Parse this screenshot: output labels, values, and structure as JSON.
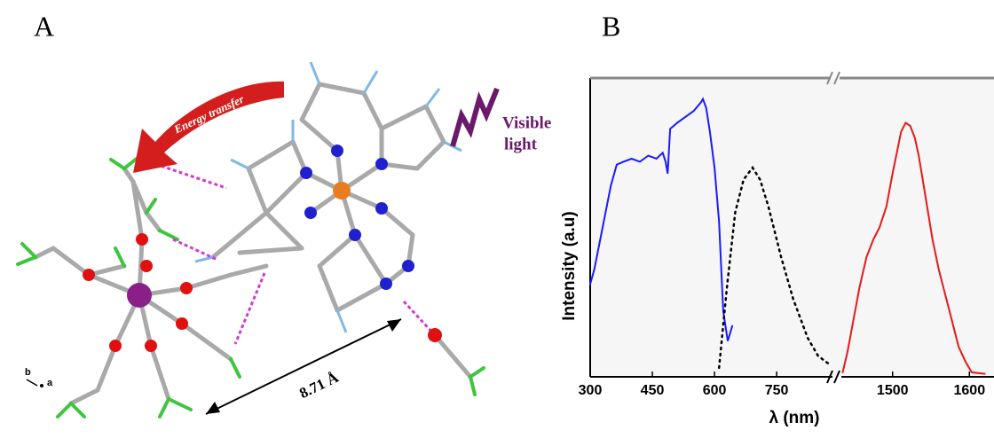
{
  "panel_labels": [
    "A",
    "B"
  ],
  "panel_a": {
    "energy_transfer": "Energy transfer",
    "visible_light": [
      "Visible",
      "light"
    ],
    "distance": "8.71 Å",
    "axes": [
      "b",
      "a"
    ]
  },
  "chart_data": {
    "type": "line",
    "y_label": "Intensity (a.u)",
    "x_label": "λ (nm)",
    "ylim": [
      0,
      1
    ],
    "x_segments": [
      {
        "xlim": [
          300,
          889
        ],
        "xticks": [
          300,
          450,
          600,
          750
        ]
      },
      {
        "xlim": [
          1431,
          1632
        ],
        "xticks": [
          1500,
          1600
        ]
      }
    ],
    "series": [
      {
        "color": "#1a1aff",
        "style": "solid",
        "x": [
          300,
          310,
          330,
          350,
          364,
          380,
          400,
          420,
          440,
          460,
          475,
          482,
          487,
          493,
          510,
          530,
          550,
          568,
          572,
          580,
          589,
          600,
          611,
          621,
          632,
          643
        ],
        "values": [
          0.31,
          0.36,
          0.5,
          0.64,
          0.71,
          0.72,
          0.73,
          0.72,
          0.74,
          0.73,
          0.75,
          0.72,
          0.68,
          0.83,
          0.85,
          0.87,
          0.89,
          0.92,
          0.93,
          0.9,
          0.82,
          0.7,
          0.52,
          0.22,
          0.12,
          0.17
        ]
      },
      {
        "color": "#000000",
        "style": "dotted",
        "x": [
          611,
          630,
          650,
          670,
          692,
          710,
          730,
          761,
          790,
          825,
          850,
          879
        ],
        "values": [
          0.03,
          0.3,
          0.55,
          0.66,
          0.7,
          0.66,
          0.57,
          0.4,
          0.26,
          0.13,
          0.07,
          0.04
        ]
      },
      {
        "color": "#e61919",
        "style": "solid",
        "x": [
          1435,
          1441,
          1449,
          1457,
          1466,
          1475,
          1483,
          1492,
          1500,
          1511,
          1517,
          1523,
          1529,
          1534,
          1543,
          1552,
          1560,
          1569,
          1578,
          1586,
          1595,
          1603,
          1620
        ],
        "values": [
          0.015,
          0.08,
          0.19,
          0.3,
          0.4,
          0.46,
          0.5,
          0.57,
          0.68,
          0.82,
          0.85,
          0.84,
          0.8,
          0.74,
          0.6,
          0.46,
          0.36,
          0.27,
          0.18,
          0.1,
          0.05,
          0.015,
          0.01
        ]
      }
    ]
  }
}
